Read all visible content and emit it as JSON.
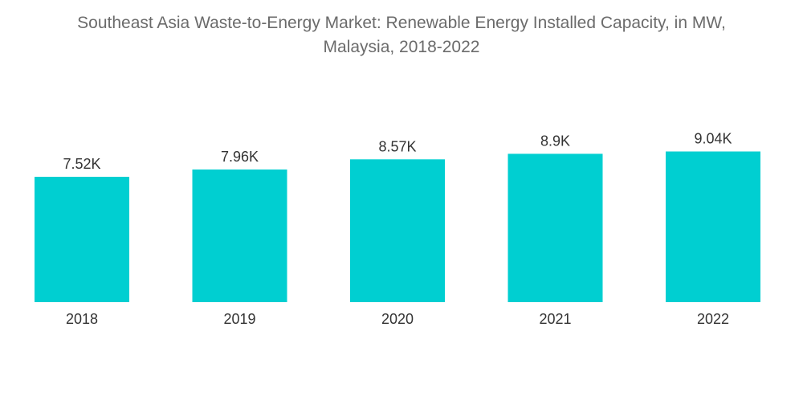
{
  "chart_data": {
    "type": "bar",
    "title_lines": [
      "Southeast Asia Waste-to-Energy Market: Renewable Energy Installed Capacity, in MW,",
      "Malaysia, 2018-2022"
    ],
    "categories": [
      "2018",
      "2019",
      "2020",
      "2021",
      "2022"
    ],
    "values": [
      7520,
      7960,
      8570,
      8900,
      9040
    ],
    "value_labels": [
      "7.52K",
      "7.96K",
      "8.57K",
      "8.9K",
      "9.04K"
    ],
    "xlabel": "",
    "ylabel": "",
    "ylim": [
      0,
      12000
    ],
    "grid": false,
    "legend": "none",
    "bar_color": "#00cfd1"
  }
}
